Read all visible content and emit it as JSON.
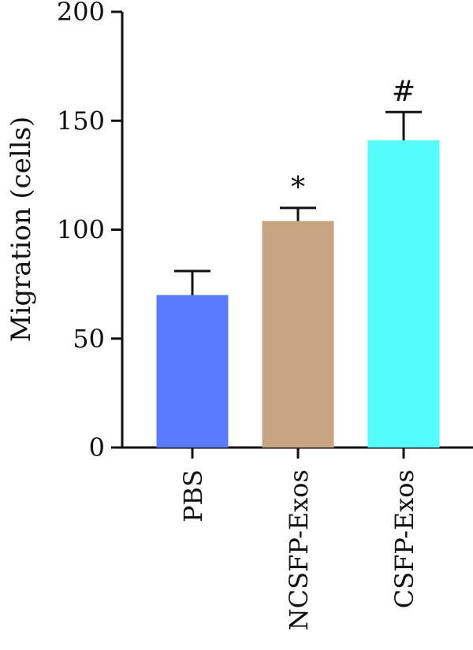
{
  "chart_data": {
    "type": "bar",
    "title": "",
    "xlabel": "",
    "ylabel": "Migration (cells)",
    "ylim": [
      0,
      200
    ],
    "yticks": [
      0,
      50,
      100,
      150,
      200
    ],
    "categories": [
      "PBS",
      "NCSFP-Exos",
      "CSFP-Exos"
    ],
    "values": [
      70,
      104,
      141
    ],
    "errors": [
      11,
      6,
      13
    ],
    "annotations": [
      "",
      "*",
      "#"
    ],
    "colors": [
      "#5b7bff",
      "#c6a482",
      "#55fcfc"
    ],
    "grid": false,
    "legend": "none"
  }
}
